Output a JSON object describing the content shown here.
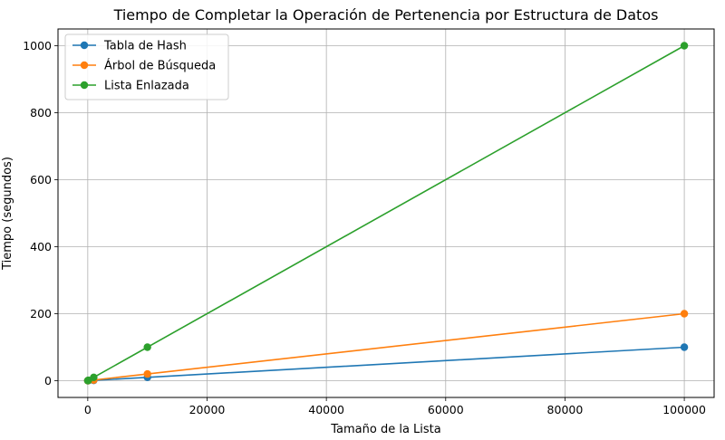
{
  "chart_data": {
    "type": "line",
    "title": "Tiempo de Completar la Operación de Pertenencia por Estructura de Datos",
    "xlabel": "Tamaño de la Lista",
    "ylabel": "Tiempo (segundos)",
    "x": [
      10,
      100,
      1000,
      10000,
      100000
    ],
    "xlim": [
      -4990,
      105000
    ],
    "ylim": [
      -50,
      1050
    ],
    "xticks": [
      0,
      20000,
      40000,
      60000,
      80000,
      100000
    ],
    "yticks": [
      0,
      200,
      400,
      600,
      800,
      1000
    ],
    "grid": true,
    "legend_position": "top-left",
    "series": [
      {
        "name": "Tabla de Hash",
        "color": "#1f77b4",
        "values": [
          0.01,
          0.1,
          1,
          10,
          100
        ]
      },
      {
        "name": "Árbol de Búsqueda",
        "color": "#ff7f0e",
        "values": [
          0.02,
          0.2,
          2,
          20,
          200
        ]
      },
      {
        "name": "Lista Enlazada",
        "color": "#2ca02c",
        "values": [
          0.1,
          1,
          10,
          100,
          1000
        ]
      }
    ]
  }
}
